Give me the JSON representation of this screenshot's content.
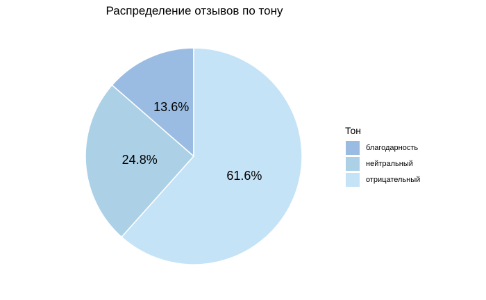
{
  "chart_data": {
    "type": "pie",
    "title": "Распределение отзывов по тону",
    "legend_title": "Тон",
    "legend_position": "right",
    "categories": [
      "благодарность",
      "нейтральный",
      "отрицательный"
    ],
    "values": [
      13.6,
      24.8,
      61.6
    ],
    "labels": [
      "13.6%",
      "24.8%",
      "61.6%"
    ],
    "colors": [
      "#9bbce2",
      "#acd1e6",
      "#c5e3f6"
    ],
    "start": "12 o'clock",
    "direction": "counterclockwise"
  }
}
